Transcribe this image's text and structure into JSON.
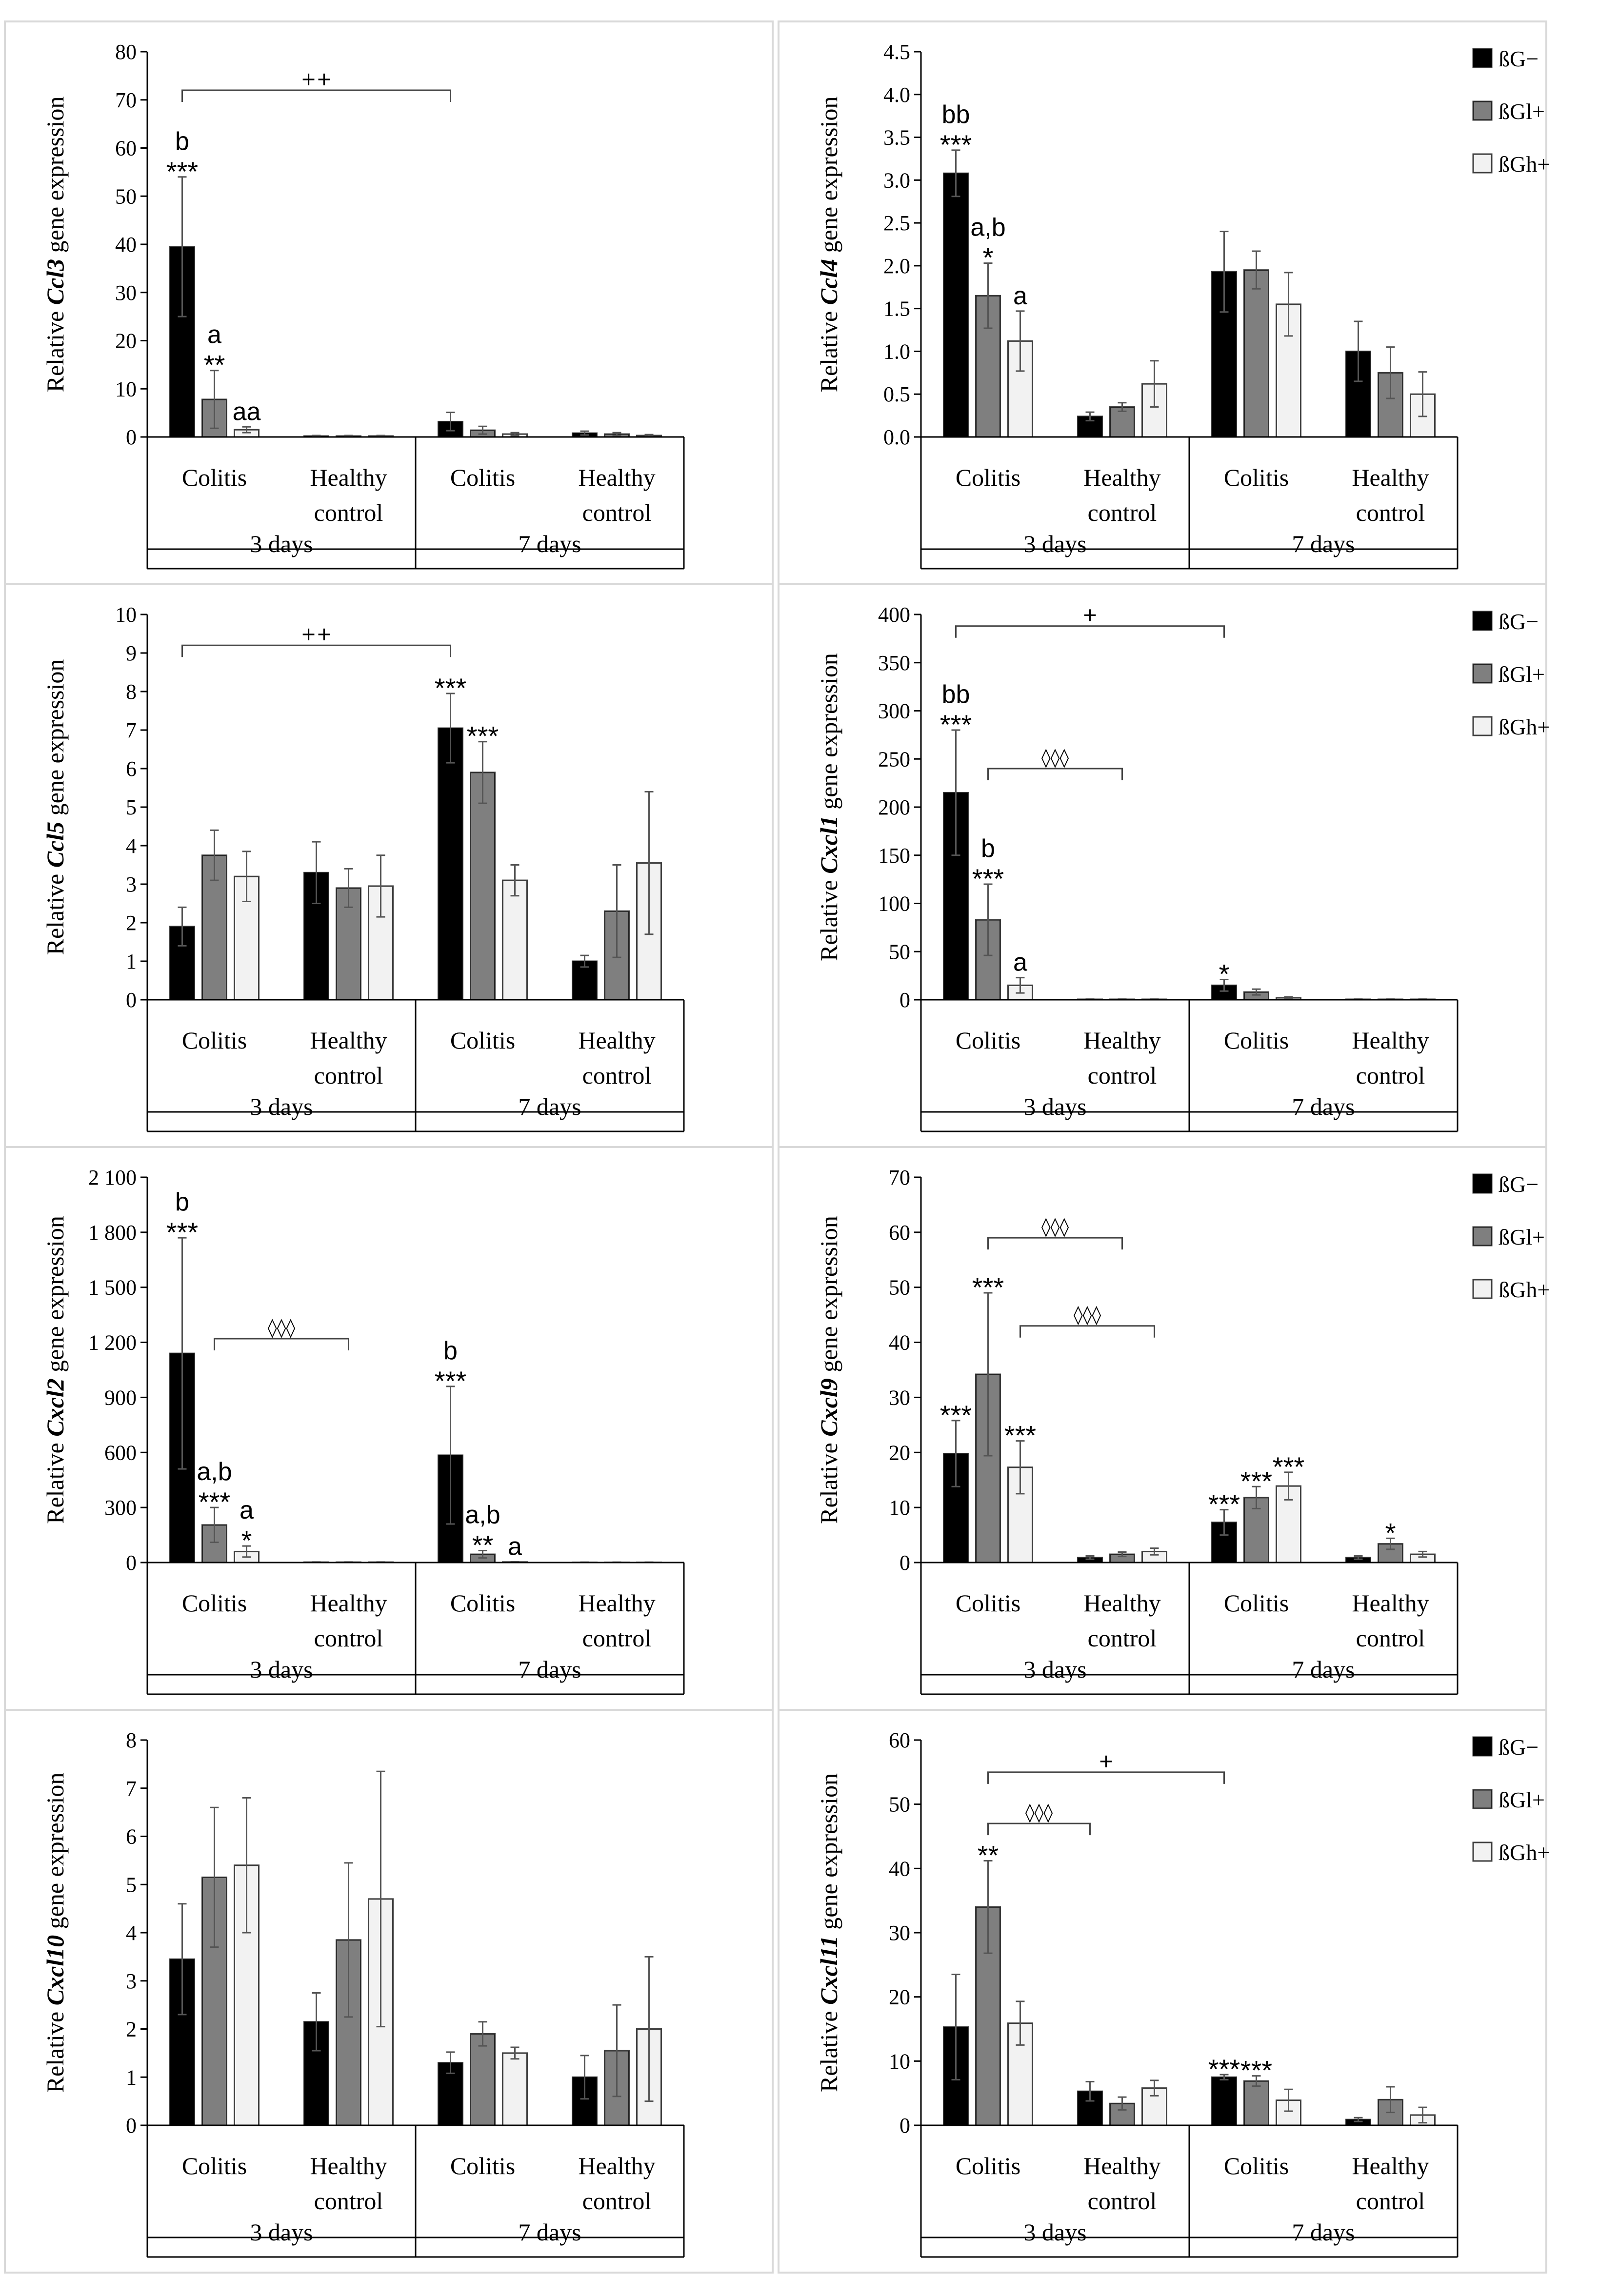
{
  "legend": [
    {
      "name": "ßG−",
      "color": "#000000"
    },
    {
      "name": "ßGl+",
      "color": "#7f7f7f"
    },
    {
      "name": "ßGh+",
      "color": "#f2f2f2"
    }
  ],
  "chart_data": [
    {
      "type": "bar",
      "ylabel_prefix": "Relative ",
      "gene": "Ccl3",
      "ylabel_suffix": " gene expression",
      "yticks": [
        "0",
        "10",
        "20",
        "30",
        "40",
        "50",
        "60",
        "70",
        "80"
      ],
      "ylim": [
        0,
        80
      ],
      "legend": false,
      "groups": [
        {
          "label": "Colitis",
          "period": "3 days"
        },
        {
          "label": "Healthy control",
          "period": "3 days"
        },
        {
          "label": "Colitis",
          "period": "7 days"
        },
        {
          "label": "Healthy control",
          "period": "7 days"
        }
      ],
      "periods": [
        "3 days",
        "7 days"
      ],
      "series": [
        {
          "name": "ßG−",
          "values": [
            39.5,
            0.2,
            3.2,
            0.8
          ],
          "errors": [
            14.5,
            0.1,
            1.9,
            0.4
          ],
          "annotations": [
            [
              "b",
              "***"
            ],
            [],
            [],
            []
          ]
        },
        {
          "name": "ßGl+",
          "values": [
            7.8,
            0.2,
            1.4,
            0.6
          ],
          "errors": [
            6.0,
            0.1,
            0.8,
            0.3
          ],
          "annotations": [
            [
              "a",
              "**"
            ],
            [],
            [],
            []
          ]
        },
        {
          "name": "ßGh+",
          "values": [
            1.5,
            0.2,
            0.6,
            0.3
          ],
          "errors": [
            0.6,
            0.1,
            0.3,
            0.2
          ],
          "annotations": [
            [
              "aa"
            ],
            [],
            [],
            []
          ]
        }
      ],
      "brackets": [
        {
          "label": "++",
          "from_group": 0,
          "from_series": 0,
          "to_group": 2,
          "to_series": 0,
          "y": 72
        }
      ]
    },
    {
      "type": "bar",
      "ylabel_prefix": "Relative ",
      "gene": "Ccl4",
      "ylabel_suffix": " gene expression",
      "yticks": [
        "0.0",
        "0.5",
        "1.0",
        "1.5",
        "2.0",
        "2.5",
        "3.0",
        "3.5",
        "4.0",
        "4.5"
      ],
      "ylim": [
        0,
        4.5
      ],
      "legend": true,
      "groups": [
        {
          "label": "Colitis",
          "period": "3 days"
        },
        {
          "label": "Healthy control",
          "period": "3 days"
        },
        {
          "label": "Colitis",
          "period": "7 days"
        },
        {
          "label": "Healthy control",
          "period": "7 days"
        }
      ],
      "periods": [
        "3 days",
        "7 days"
      ],
      "series": [
        {
          "name": "ßG−",
          "values": [
            3.08,
            0.24,
            1.93,
            1.0
          ],
          "errors": [
            0.27,
            0.05,
            0.47,
            0.35
          ],
          "annotations": [
            [
              "bb",
              "***"
            ],
            [],
            [],
            []
          ]
        },
        {
          "name": "ßGl+",
          "values": [
            1.65,
            0.35,
            1.95,
            0.75
          ],
          "errors": [
            0.38,
            0.05,
            0.22,
            0.3
          ],
          "annotations": [
            [
              "a,b",
              "*"
            ],
            [],
            [],
            []
          ]
        },
        {
          "name": "ßGh+",
          "values": [
            1.12,
            0.62,
            1.55,
            0.5
          ],
          "errors": [
            0.35,
            0.27,
            0.37,
            0.26
          ],
          "annotations": [
            [
              "a"
            ],
            [],
            [],
            []
          ]
        }
      ],
      "brackets": []
    },
    {
      "type": "bar",
      "ylabel_prefix": "Relative ",
      "gene": "Ccl5",
      "ylabel_suffix": " gene expression",
      "yticks": [
        "0",
        "1",
        "2",
        "3",
        "4",
        "5",
        "6",
        "7",
        "8",
        "9",
        "10"
      ],
      "ylim": [
        0,
        10
      ],
      "legend": false,
      "groups": [
        {
          "label": "Colitis",
          "period": "3 days"
        },
        {
          "label": "Healthy control",
          "period": "3 days"
        },
        {
          "label": "Colitis",
          "period": "7 days"
        },
        {
          "label": "Healthy control",
          "period": "7 days"
        }
      ],
      "periods": [
        "3 days",
        "7 days"
      ],
      "series": [
        {
          "name": "ßG−",
          "values": [
            1.9,
            3.3,
            7.05,
            1.0
          ],
          "errors": [
            0.5,
            0.8,
            0.9,
            0.15
          ],
          "annotations": [
            [],
            [],
            [
              "***"
            ],
            []
          ]
        },
        {
          "name": "ßGl+",
          "values": [
            3.75,
            2.9,
            5.9,
            2.3
          ],
          "errors": [
            0.65,
            0.5,
            0.8,
            1.2
          ],
          "annotations": [
            [],
            [],
            [
              "***"
            ],
            []
          ]
        },
        {
          "name": "ßGh+",
          "values": [
            3.2,
            2.95,
            3.1,
            3.55
          ],
          "errors": [
            0.65,
            0.8,
            0.4,
            1.85
          ],
          "annotations": [
            [],
            [],
            [],
            []
          ]
        }
      ],
      "brackets": [
        {
          "label": "++",
          "from_group": 0,
          "from_series": 0,
          "to_group": 2,
          "to_series": 0,
          "y": 9.2
        }
      ]
    },
    {
      "type": "bar",
      "ylabel_prefix": "Relative ",
      "gene": "Cxcl1",
      "ylabel_suffix": " gene expression",
      "yticks": [
        "0",
        "50",
        "100",
        "150",
        "200",
        "250",
        "300",
        "350",
        "400"
      ],
      "ylim": [
        0,
        400
      ],
      "legend": true,
      "groups": [
        {
          "label": "Colitis",
          "period": "3 days"
        },
        {
          "label": "Healthy control",
          "period": "3 days"
        },
        {
          "label": "Colitis",
          "period": "7 days"
        },
        {
          "label": "Healthy control",
          "period": "7 days"
        }
      ],
      "periods": [
        "3 days",
        "7 days"
      ],
      "series": [
        {
          "name": "ßG−",
          "values": [
            215,
            0.5,
            15,
            0.5
          ],
          "errors": [
            65,
            0.2,
            6,
            0.2
          ],
          "annotations": [
            [
              "bb",
              "***"
            ],
            [],
            [
              "*"
            ],
            []
          ]
        },
        {
          "name": "ßGl+",
          "values": [
            83,
            0.5,
            8,
            0.5
          ],
          "errors": [
            37,
            0.2,
            3,
            0.2
          ],
          "annotations": [
            [
              "b",
              "***"
            ],
            [],
            [],
            []
          ]
        },
        {
          "name": "ßGh+",
          "values": [
            15,
            0.5,
            2,
            0.5
          ],
          "errors": [
            8,
            0.2,
            1,
            0.2
          ],
          "annotations": [
            [
              "a"
            ],
            [],
            [],
            []
          ]
        }
      ],
      "brackets": [
        {
          "label": "+",
          "from_group": 0,
          "from_series": 0,
          "to_group": 2,
          "to_series": 0,
          "y": 388
        },
        {
          "label": "◊◊◊",
          "from_group": 0,
          "from_series": 1,
          "to_group": 1,
          "to_series": 1,
          "y": 240
        }
      ]
    },
    {
      "type": "bar",
      "ylabel_prefix": "Relative ",
      "gene": "Cxcl2",
      "ylabel_suffix": " gene expression",
      "yticks": [
        "0",
        "300",
        "600",
        "900",
        "1 200",
        "1 500",
        "1 800",
        "2 100"
      ],
      "ylim": [
        0,
        2100
      ],
      "legend": false,
      "groups": [
        {
          "label": "Colitis",
          "period": "3 days"
        },
        {
          "label": "Healthy control",
          "period": "3 days"
        },
        {
          "label": "Colitis",
          "period": "7 days"
        },
        {
          "label": "Healthy control",
          "period": "7 days"
        }
      ],
      "periods": [
        "3 days",
        "7 days"
      ],
      "series": [
        {
          "name": "ßG−",
          "values": [
            1140,
            2,
            585,
            1
          ],
          "errors": [
            630,
            1,
            375,
            1
          ],
          "annotations": [
            [
              "b",
              "***"
            ],
            [],
            [
              "b",
              "***"
            ],
            []
          ]
        },
        {
          "name": "ßGl+",
          "values": [
            205,
            2,
            45,
            1
          ],
          "errors": [
            95,
            1,
            20,
            1
          ],
          "annotations": [
            [
              "a,b",
              "***"
            ],
            [],
            [
              "a,b",
              "**"
            ],
            []
          ]
        },
        {
          "name": "ßGh+",
          "values": [
            60,
            2,
            3,
            1
          ],
          "errors": [
            30,
            1,
            1,
            1
          ],
          "annotations": [
            [
              "a",
              "*"
            ],
            [],
            [
              "a"
            ],
            []
          ]
        }
      ],
      "brackets": [
        {
          "label": "◊◊◊",
          "from_group": 0,
          "from_series": 1,
          "to_group": 1,
          "to_series": 1,
          "y": 1220
        }
      ]
    },
    {
      "type": "bar",
      "ylabel_prefix": "Relative ",
      "gene": "Cxcl9",
      "ylabel_suffix": " gene expression",
      "yticks": [
        "0",
        "10",
        "20",
        "30",
        "40",
        "50",
        "60",
        "70"
      ],
      "ylim": [
        0,
        70
      ],
      "legend": true,
      "groups": [
        {
          "label": "Colitis",
          "period": "3 days"
        },
        {
          "label": "Healthy control",
          "period": "3 days"
        },
        {
          "label": "Colitis",
          "period": "7 days"
        },
        {
          "label": "Healthy control",
          "period": "7 days"
        }
      ],
      "periods": [
        "3 days",
        "7 days"
      ],
      "series": [
        {
          "name": "ßG−",
          "values": [
            19.8,
            0.9,
            7.3,
            0.9
          ],
          "errors": [
            6,
            0.3,
            2.3,
            0.3
          ],
          "annotations": [
            [
              "***"
            ],
            [],
            [
              "***"
            ],
            []
          ]
        },
        {
          "name": "ßGl+",
          "values": [
            34.2,
            1.5,
            11.8,
            3.4
          ],
          "errors": [
            14.8,
            0.4,
            2.0,
            1.0
          ],
          "annotations": [
            [
              "***"
            ],
            [],
            [
              "***"
            ],
            [
              "*"
            ]
          ]
        },
        {
          "name": "ßGh+",
          "values": [
            17.3,
            2.0,
            13.9,
            1.5
          ],
          "errors": [
            4.8,
            0.6,
            2.5,
            0.5
          ],
          "annotations": [
            [
              "***"
            ],
            [],
            [
              "***"
            ],
            []
          ]
        }
      ],
      "brackets": [
        {
          "label": "◊◊◊",
          "from_group": 0,
          "from_series": 1,
          "to_group": 1,
          "to_series": 1,
          "y": 59
        },
        {
          "label": "◊◊◊",
          "from_group": 0,
          "from_series": 2,
          "to_group": 1,
          "to_series": 2,
          "y": 43
        }
      ]
    },
    {
      "type": "bar",
      "ylabel_prefix": "Relative ",
      "gene": "Cxcl10",
      "ylabel_suffix": " gene expression",
      "yticks": [
        "0",
        "1",
        "2",
        "3",
        "4",
        "5",
        "6",
        "7",
        "8"
      ],
      "ylim": [
        0,
        8
      ],
      "legend": false,
      "groups": [
        {
          "label": "Colitis",
          "period": "3 days"
        },
        {
          "label": "Healthy control",
          "period": "3 days"
        },
        {
          "label": "Colitis",
          "period": "7 days"
        },
        {
          "label": "Healthy control",
          "period": "7 days"
        }
      ],
      "periods": [
        "3 days",
        "7 days"
      ],
      "series": [
        {
          "name": "ßG−",
          "values": [
            3.45,
            2.15,
            1.3,
            1.0
          ],
          "errors": [
            1.15,
            0.6,
            0.22,
            0.45
          ],
          "annotations": [
            [],
            [],
            [],
            []
          ]
        },
        {
          "name": "ßGl+",
          "values": [
            5.15,
            3.85,
            1.9,
            1.55
          ],
          "errors": [
            1.45,
            1.6,
            0.25,
            0.95
          ],
          "annotations": [
            [],
            [],
            [],
            []
          ]
        },
        {
          "name": "ßGh+",
          "values": [
            5.4,
            4.7,
            1.5,
            2.0
          ],
          "errors": [
            1.4,
            2.65,
            0.12,
            1.5
          ],
          "annotations": [
            [],
            [],
            [],
            []
          ]
        }
      ],
      "brackets": []
    },
    {
      "type": "bar",
      "ylabel_prefix": "Relative ",
      "gene": "Cxcl11",
      "ylabel_suffix": " gene expression",
      "yticks": [
        "0",
        "10",
        "20",
        "30",
        "40",
        "50",
        "60"
      ],
      "ylim": [
        0,
        60
      ],
      "legend": true,
      "groups": [
        {
          "label": "Colitis",
          "period": "3 days"
        },
        {
          "label": "Healthy control",
          "period": "3 days"
        },
        {
          "label": "Colitis",
          "period": "7 days"
        },
        {
          "label": "Healthy control",
          "period": "7 days"
        }
      ],
      "periods": [
        "3 days",
        "7 days"
      ],
      "series": [
        {
          "name": "ßG−",
          "values": [
            15.3,
            5.3,
            7.5,
            0.9
          ],
          "errors": [
            8.2,
            1.5,
            0.4,
            0.3
          ],
          "annotations": [
            [],
            [],
            [
              "***"
            ],
            []
          ]
        },
        {
          "name": "ßGl+",
          "values": [
            34.0,
            3.4,
            6.9,
            4.0
          ],
          "errors": [
            7.2,
            1.0,
            0.8,
            2.0
          ],
          "annotations": [
            [
              "**"
            ],
            [],
            [
              "***"
            ],
            []
          ]
        },
        {
          "name": "ßGh+",
          "values": [
            15.9,
            5.8,
            3.9,
            1.6
          ],
          "errors": [
            3.4,
            1.2,
            1.7,
            1.2
          ],
          "annotations": [
            [],
            [],
            [],
            []
          ]
        }
      ],
      "brackets": [
        {
          "label": "+",
          "from_group": 0,
          "from_series": 1,
          "to_group": 2,
          "to_series": 0,
          "y": 55
        },
        {
          "label": "◊◊◊",
          "from_group": 0,
          "from_series": 1,
          "to_group": 1,
          "to_series": 0,
          "y": 47
        }
      ]
    }
  ]
}
